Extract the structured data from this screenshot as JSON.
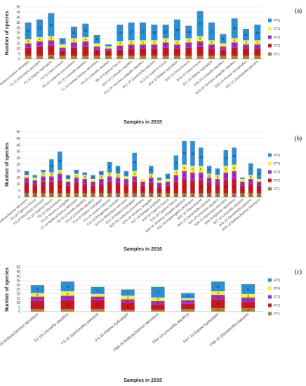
{
  "chart_data": [
    {
      "type": "bar",
      "stacked": true,
      "panel_label": "(a)",
      "xlabel": "Samples in 2015",
      "ylabel": "Number of species",
      "ylim": [
        0,
        50
      ],
      "yticks": [
        0,
        5,
        10,
        15,
        20,
        25,
        30,
        35,
        40,
        45,
        50
      ],
      "legend_position": "right",
      "categories": [
        "F1-15 Bolboschoenus laticarpus",
        "F2-15 Eleocharis acicularis",
        "F3-15 Elatine hydropiper",
        "F4-15 Chara braunii",
        "F5-15 Lindernia procumbens",
        "F6-15 Limosella aquatica",
        "F7-15 Bolboschoenus laticarpus",
        "F8-15 Limosella aquatica",
        "B9-15 Cyperus fuscus",
        "B10-15 Limosella aquatica",
        "B11-15 Veronica anagallis-aquatica",
        "B12-15 Zannichellia palustris",
        "B13-15 Cyperus fuscus",
        "B14-15 Elatine hydropiper",
        "B15-15 Chara braunii",
        "B16-15 Chara braunii",
        "B17-15 Elatine hydropiper",
        "D18-15 Limosella aquatica",
        "D19-15 Veronica anagallis-aquatica",
        "D20-15 Rumex stenophyllus",
        "D21-15 Zannichellia palustris"
      ],
      "series": [
        {
          "name": "FT1",
          "color": "#9a8a3c",
          "values": [
            3,
            3,
            4,
            3,
            3,
            3,
            3,
            3,
            3,
            3,
            3,
            3,
            3,
            3,
            3,
            3,
            3,
            3,
            3,
            3,
            3
          ]
        },
        {
          "name": "FT2",
          "color": "#c8181c",
          "values": [
            8,
            9,
            9,
            5,
            8,
            9,
            6,
            5,
            6,
            7,
            7,
            7,
            8,
            7,
            8,
            9,
            7,
            6,
            8,
            7,
            7
          ]
        },
        {
          "name": "FT3",
          "color": "#a52fc7",
          "values": [
            4,
            5,
            5,
            3,
            5,
            5,
            3,
            2,
            4,
            4,
            4,
            4,
            5,
            4,
            5,
            5,
            4,
            3,
            5,
            4,
            4
          ]
        },
        {
          "name": "FT4",
          "color": "#ffee33",
          "values": [
            4,
            4,
            4,
            3,
            4,
            4,
            3,
            2,
            4,
            4,
            4,
            4,
            4,
            4,
            4,
            5,
            4,
            3,
            4,
            4,
            4
          ]
        },
        {
          "name": "FT5",
          "color": "#2b8fd6",
          "values": [
            16,
            17,
            22,
            6,
            11,
            13,
            8,
            2,
            16,
            17,
            17,
            15,
            13,
            20,
            12,
            24,
            17,
            9,
            19,
            11,
            15
          ]
        }
      ]
    },
    {
      "type": "bar",
      "stacked": true,
      "panel_label": "(b)",
      "xlabel": "Samples in 2016",
      "ylabel": "Number of species",
      "ylim": [
        0,
        50
      ],
      "yticks": [
        0,
        5,
        10,
        15,
        20,
        25,
        30,
        35,
        40,
        45,
        50
      ],
      "legend_position": "right",
      "categories": [
        "F1-16 Bolboschoenus laticarpus",
        "F2-16 Cyperus fuscus",
        "F3-16 Eleocharis acicularis",
        "F4-16 Cyperus fuscus",
        "F5-16 Chara braunii",
        "F6-16 Veronica anagallis",
        "F7-16 Bolboschoenus laticarpus",
        "F8-16 Limosella aquatica",
        "F9-16 Limosella aquatica",
        "F10-16 Elatine hydropiper",
        "F11-16 Juncus bufonius",
        "F12-16 Phragmites australis",
        "B13-16 Eleocharis acicularis",
        "B14-16 Elatine hydropiper",
        "B15-16 Lindernia procumbens",
        "B16-16 Veronica anagallis",
        "B17-16 Rorippa amphibia",
        "B18-16 Cyperus fuscus",
        "B19-16 Cyperus fuscus",
        "B20-16 Veronica anagallis-aquatica",
        "B21-16 Potamogeton pectinatus",
        "B22-16 Chara braunii",
        "B23-16 Zannichellia palustris",
        "B24-16 Limosella aquatica",
        "B25-16 Eleocharis acicularis",
        "B26-16 Agrostis stolonifera",
        "B27-16 Limosella aquatica",
        "B28-16 Zannichellia palustris",
        "B29-16 Bolboschoenus laticarpus"
      ],
      "series": [
        {
          "name": "FT1",
          "color": "#9a8a3c",
          "values": [
            3,
            3,
            3,
            3,
            3,
            3,
            3,
            3,
            3,
            3,
            3,
            3,
            3,
            3,
            3,
            3,
            3,
            3,
            3,
            3,
            3,
            3,
            3,
            3,
            3,
            3,
            3,
            3,
            3
          ]
        },
        {
          "name": "FT2",
          "color": "#c8181c",
          "values": [
            8,
            7,
            9,
            9,
            10,
            6,
            8,
            7,
            6,
            7,
            9,
            8,
            7,
            9,
            6,
            8,
            5,
            6,
            9,
            11,
            10,
            10,
            8,
            7,
            10,
            11,
            6,
            7,
            6
          ]
        },
        {
          "name": "FT3",
          "color": "#a52fc7",
          "values": [
            4,
            3,
            4,
            4,
            5,
            3,
            4,
            4,
            3,
            4,
            4,
            4,
            4,
            4,
            3,
            4,
            3,
            3,
            5,
            6,
            6,
            6,
            4,
            4,
            6,
            6,
            3,
            4,
            3
          ]
        },
        {
          "name": "FT4",
          "color": "#ffee33",
          "values": [
            2,
            2,
            3,
            3,
            3,
            2,
            3,
            3,
            2,
            3,
            3,
            3,
            2,
            4,
            2,
            3,
            2,
            2,
            4,
            5,
            5,
            5,
            3,
            3,
            5,
            5,
            2,
            3,
            2
          ]
        },
        {
          "name": "FT5",
          "color": "#2b8fd6",
          "values": [
            3,
            2,
            2,
            10,
            14,
            3,
            3,
            2,
            3,
            3,
            8,
            6,
            4,
            14,
            0,
            6,
            2,
            4,
            11,
            18,
            19,
            14,
            6,
            5,
            12,
            13,
            1,
            9,
            8
          ]
        }
      ]
    },
    {
      "type": "bar",
      "stacked": true,
      "panel_label": "(c)",
      "xlabel": "Samples in 2019",
      "ylabel": "Number of species",
      "ylim": [
        0,
        50
      ],
      "yticks": [
        0,
        5,
        10,
        15,
        20,
        25,
        30,
        35,
        40,
        45,
        50
      ],
      "legend_position": "right",
      "categories": [
        "F1-19 Bolboschoenus laticarpus",
        "F2-19 Limosella aquatica",
        "F3-19 Zannichellia palustris",
        "F4-19 Elatine hydropiper",
        "FN5-19 Bolboschoenus laticarpus",
        "FN6-19 Limosella aquatica",
        "FN7-19 Elatine hydropiper",
        "FN8-19 Zannichellia palustris"
      ],
      "series": [
        {
          "name": "FT1",
          "color": "#9a8a3c",
          "values": [
            3,
            3,
            3,
            2,
            2,
            3,
            4,
            4
          ]
        },
        {
          "name": "FT2",
          "color": "#c8181c",
          "values": [
            9,
            10,
            10,
            8,
            6,
            6,
            10,
            7
          ]
        },
        {
          "name": "FT3",
          "color": "#a52fc7",
          "values": [
            5,
            5,
            4,
            4,
            4,
            4,
            5,
            5
          ]
        },
        {
          "name": "FT4",
          "color": "#ffee33",
          "values": [
            4,
            5,
            3,
            4,
            4,
            2,
            4,
            4
          ]
        },
        {
          "name": "FT5",
          "color": "#2b8fd6",
          "values": [
            9,
            11,
            8,
            7,
            12,
            6,
            11,
            11
          ]
        }
      ]
    }
  ]
}
